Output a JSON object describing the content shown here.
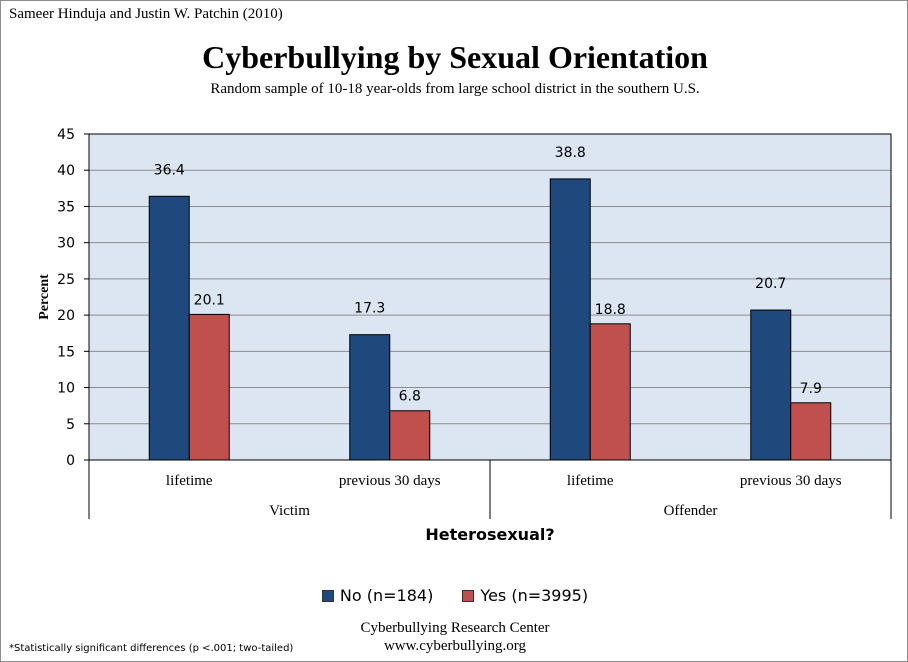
{
  "citation": "Sameer Hinduja and Justin W. Patchin (2010)",
  "footnote": "*Statistically significant differences (p <.001; two-tailed)",
  "source": {
    "line1": "Cyberbullying Research Center",
    "line2": "www.cyberbullying.org"
  },
  "colors": {
    "no": "#1f497d",
    "yes": "#c0504d",
    "plot_bg": "#dce6f2"
  },
  "chart_data": {
    "type": "bar",
    "title": "Cyberbullying by Sexual Orientation",
    "subtitle": "Random sample of  10-18 year-olds from large school district in the southern U.S.",
    "ylabel": "Percent",
    "xlabel": "Heterosexual?",
    "ylim": [
      0,
      45
    ],
    "yticks": [
      0,
      5,
      10,
      15,
      20,
      25,
      30,
      35,
      40,
      45
    ],
    "grid": true,
    "legend_position": "bottom",
    "categories": [
      "lifetime",
      "previous 30 days",
      "lifetime",
      "previous 30 days"
    ],
    "groups": [
      {
        "label": "Victim",
        "categories": [
          0,
          1
        ]
      },
      {
        "label": "Offender",
        "categories": [
          2,
          3
        ]
      }
    ],
    "series": [
      {
        "name": "No (n=184)",
        "values": [
          36.4,
          17.3,
          38.8,
          20.7
        ]
      },
      {
        "name": "Yes (n=3995)",
        "values": [
          20.1,
          6.8,
          18.8,
          7.9
        ]
      }
    ]
  }
}
